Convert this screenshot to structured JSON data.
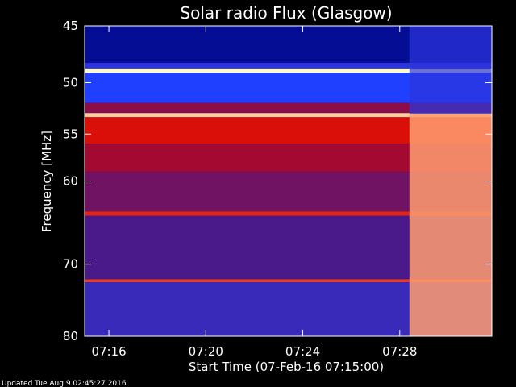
{
  "chart_data": {
    "type": "heatmap",
    "title": "Solar radio Flux (Glasgow)",
    "xlabel": "Start Time (07-Feb-16 07:15:00)",
    "ylabel": "Frequency [MHz]",
    "footer": "Updated Tue Aug  9 02:45:27 2016",
    "x_unit": "minutes after 07:15:00",
    "xlim": [
      0,
      16.8
    ],
    "ylim": [
      45,
      80
    ],
    "y_scale": "log",
    "x_ticks": [
      {
        "value": 1,
        "label": "07:16"
      },
      {
        "value": 5,
        "label": "07:20"
      },
      {
        "value": 9,
        "label": "07:24"
      },
      {
        "value": 13,
        "label": "07:28"
      }
    ],
    "y_ticks": [
      {
        "value": 45,
        "label": "45"
      },
      {
        "value": 50,
        "label": "50"
      },
      {
        "value": 55,
        "label": "55"
      },
      {
        "value": 60,
        "label": "60"
      },
      {
        "value": 70,
        "label": "70"
      },
      {
        "value": 80,
        "label": "80"
      }
    ],
    "colors": {
      "low": "#00007a",
      "mid_low": "#2040ff",
      "mid": "#4a1a8a",
      "high": "#d40000",
      "very_high": "#ff7040",
      "max": "#fffbd0"
    },
    "bands": [
      {
        "f0": 45.0,
        "f1": 48.2,
        "level": 0.05
      },
      {
        "f0": 48.2,
        "f1": 48.7,
        "level": 0.3
      },
      {
        "f0": 48.7,
        "f1": 49.1,
        "level": 1.0
      },
      {
        "f0": 49.1,
        "f1": 51.9,
        "level": 0.25
      },
      {
        "f0": 51.9,
        "f1": 52.9,
        "level": 0.55
      },
      {
        "f0": 52.9,
        "f1": 53.3,
        "level": 0.95
      },
      {
        "f0": 53.3,
        "f1": 56.0,
        "level": 0.72
      },
      {
        "f0": 56.0,
        "f1": 59.0,
        "level": 0.6
      },
      {
        "f0": 59.0,
        "f1": 63.5,
        "level": 0.5
      },
      {
        "f0": 63.5,
        "f1": 64.0,
        "level": 0.75
      },
      {
        "f0": 64.0,
        "f1": 72.0,
        "level": 0.42
      },
      {
        "f0": 72.0,
        "f1": 72.4,
        "level": 0.78
      },
      {
        "f0": 72.4,
        "f1": 80.0,
        "level": 0.35
      }
    ],
    "burst": {
      "x_start": 13.4,
      "x_end": 16.8,
      "f_min": 53.0,
      "f_max": 80.0,
      "level": 0.9
    }
  }
}
